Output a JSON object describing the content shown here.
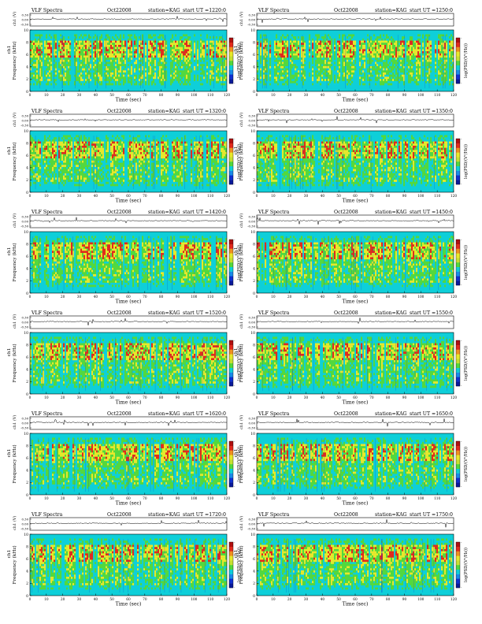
{
  "chart_data": [
    {
      "type": "heatmap",
      "title_left": "VLF Spectra",
      "date": "Oct22008",
      "station": "station=KAG",
      "start": "start UT =1220:0"
    },
    {
      "type": "heatmap",
      "title_left": "VLF Spectra",
      "date": "Oct22008",
      "station": "station=KAG",
      "start": "start UT =1250:0"
    },
    {
      "type": "heatmap",
      "title_left": "VLF Spectra",
      "date": "Oct22008",
      "station": "station=KAG",
      "start": "start UT =1320:0"
    },
    {
      "type": "heatmap",
      "title_left": "VLF Spectra",
      "date": "Oct22008",
      "station": "station=KAG",
      "start": "start UT =1350:0"
    },
    {
      "type": "heatmap",
      "title_left": "VLF Spectra",
      "date": "Oct22008",
      "station": "station=KAG",
      "start": "start UT =1420:0"
    },
    {
      "type": "heatmap",
      "title_left": "VLF Spectra",
      "date": "Oct22008",
      "station": "station=KAG",
      "start": "start UT =1450:0"
    },
    {
      "type": "heatmap",
      "title_left": "VLF Spectra",
      "date": "Oct22008",
      "station": "station=KAG",
      "start": "start UT =1520:0"
    },
    {
      "type": "heatmap",
      "title_left": "VLF Spectra",
      "date": "Oct22008",
      "station": "station=KAG",
      "start": "start UT =1550:0"
    },
    {
      "type": "heatmap",
      "title_left": "VLF Spectra",
      "date": "Oct22008",
      "station": "station=KAG",
      "start": "start UT =1620:0"
    },
    {
      "type": "heatmap",
      "title_left": "VLF Spectra",
      "date": "Oct22008",
      "station": "station=KAG",
      "start": "start UT =1650:0"
    },
    {
      "type": "heatmap",
      "title_left": "VLF Spectra",
      "date": "Oct22008",
      "station": "station=KAG",
      "start": "start UT =1720:0"
    },
    {
      "type": "heatmap",
      "title_left": "VLF Spectra",
      "date": "Oct22008",
      "station": "station=KAG",
      "start": "start UT =1750:0"
    }
  ],
  "common": {
    "xlabel": "Time (sec)",
    "xticks": [
      "0",
      "10",
      "20",
      "30",
      "40",
      "50",
      "60",
      "70",
      "80",
      "90",
      "100",
      "110",
      "120"
    ],
    "xlim": [
      0,
      120
    ],
    "ylabel_main": "Frequency (kHz)",
    "ylabel_ch": "ch1",
    "yticks_main": [
      "0",
      "2",
      "4",
      "6",
      "8",
      "10"
    ],
    "ylim_main": [
      0,
      10
    ],
    "strip_label": "ch1 (V)",
    "strip_ticks": [
      "0.30",
      "0.00",
      "-0.30"
    ],
    "colorbar_label": "log(PSD/(V²/Hz))",
    "colorbar_ticks": [
      "-",
      "-"
    ]
  },
  "colors": {
    "background": "#0ecfd9",
    "green": "#54d83c",
    "yellow": "#e8e82a",
    "red": "#e22a1c",
    "blue": "#1030d0",
    "colorbar": [
      "#0a1a9a",
      "#1030d0",
      "#1a8ae8",
      "#0ecfd9",
      "#54d83c",
      "#c8e030",
      "#e8e82a",
      "#f09020",
      "#e22a1c",
      "#b01010"
    ]
  }
}
